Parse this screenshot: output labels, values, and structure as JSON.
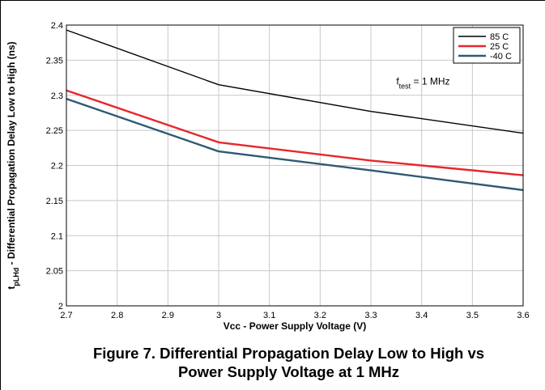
{
  "caption": {
    "line1": "Figure 7. Differential Propagation Delay Low to High vs",
    "line2": "Power Supply Voltage at 1 MHz"
  },
  "chart_data": {
    "type": "line",
    "xlabel": "Vcc - Power Supply Voltage  (V)",
    "ylabel": {
      "prefix": "t",
      "subscript": "pLHd",
      "rest": " - Differential Propagation Delay Low to High (ns)"
    },
    "xlim": [
      2.7,
      3.6
    ],
    "ylim": [
      2.0,
      2.4
    ],
    "x_ticks": [
      "2.7",
      "2.8",
      "2.9",
      "3",
      "3.1",
      "3.2",
      "3.3",
      "3.4",
      "3.5",
      "3.6"
    ],
    "y_ticks": [
      "2",
      "2.05",
      "2.1",
      "2.15",
      "2.2",
      "2.25",
      "2.3",
      "2.35",
      "2.4"
    ],
    "grid": true,
    "legend_position": "top-right",
    "annotation": {
      "prefix": "f",
      "subscript": "test",
      "rest": " = 1 MHz",
      "x": 3.35,
      "y": 2.315
    },
    "series": [
      {
        "name": "85 C",
        "color": "#000000",
        "x": [
          2.7,
          3.0,
          3.3,
          3.6
        ],
        "values": [
          2.393,
          2.315,
          2.277,
          2.246
        ]
      },
      {
        "name": "25 C",
        "color": "#e8262b",
        "x": [
          2.7,
          3.0,
          3.3,
          3.6
        ],
        "values": [
          2.307,
          2.233,
          2.207,
          2.186
        ]
      },
      {
        "name": "-40 C",
        "color": "#2e5a73",
        "x": [
          2.7,
          3.0,
          3.3,
          3.6
        ],
        "values": [
          2.295,
          2.22,
          2.193,
          2.165
        ]
      }
    ]
  }
}
